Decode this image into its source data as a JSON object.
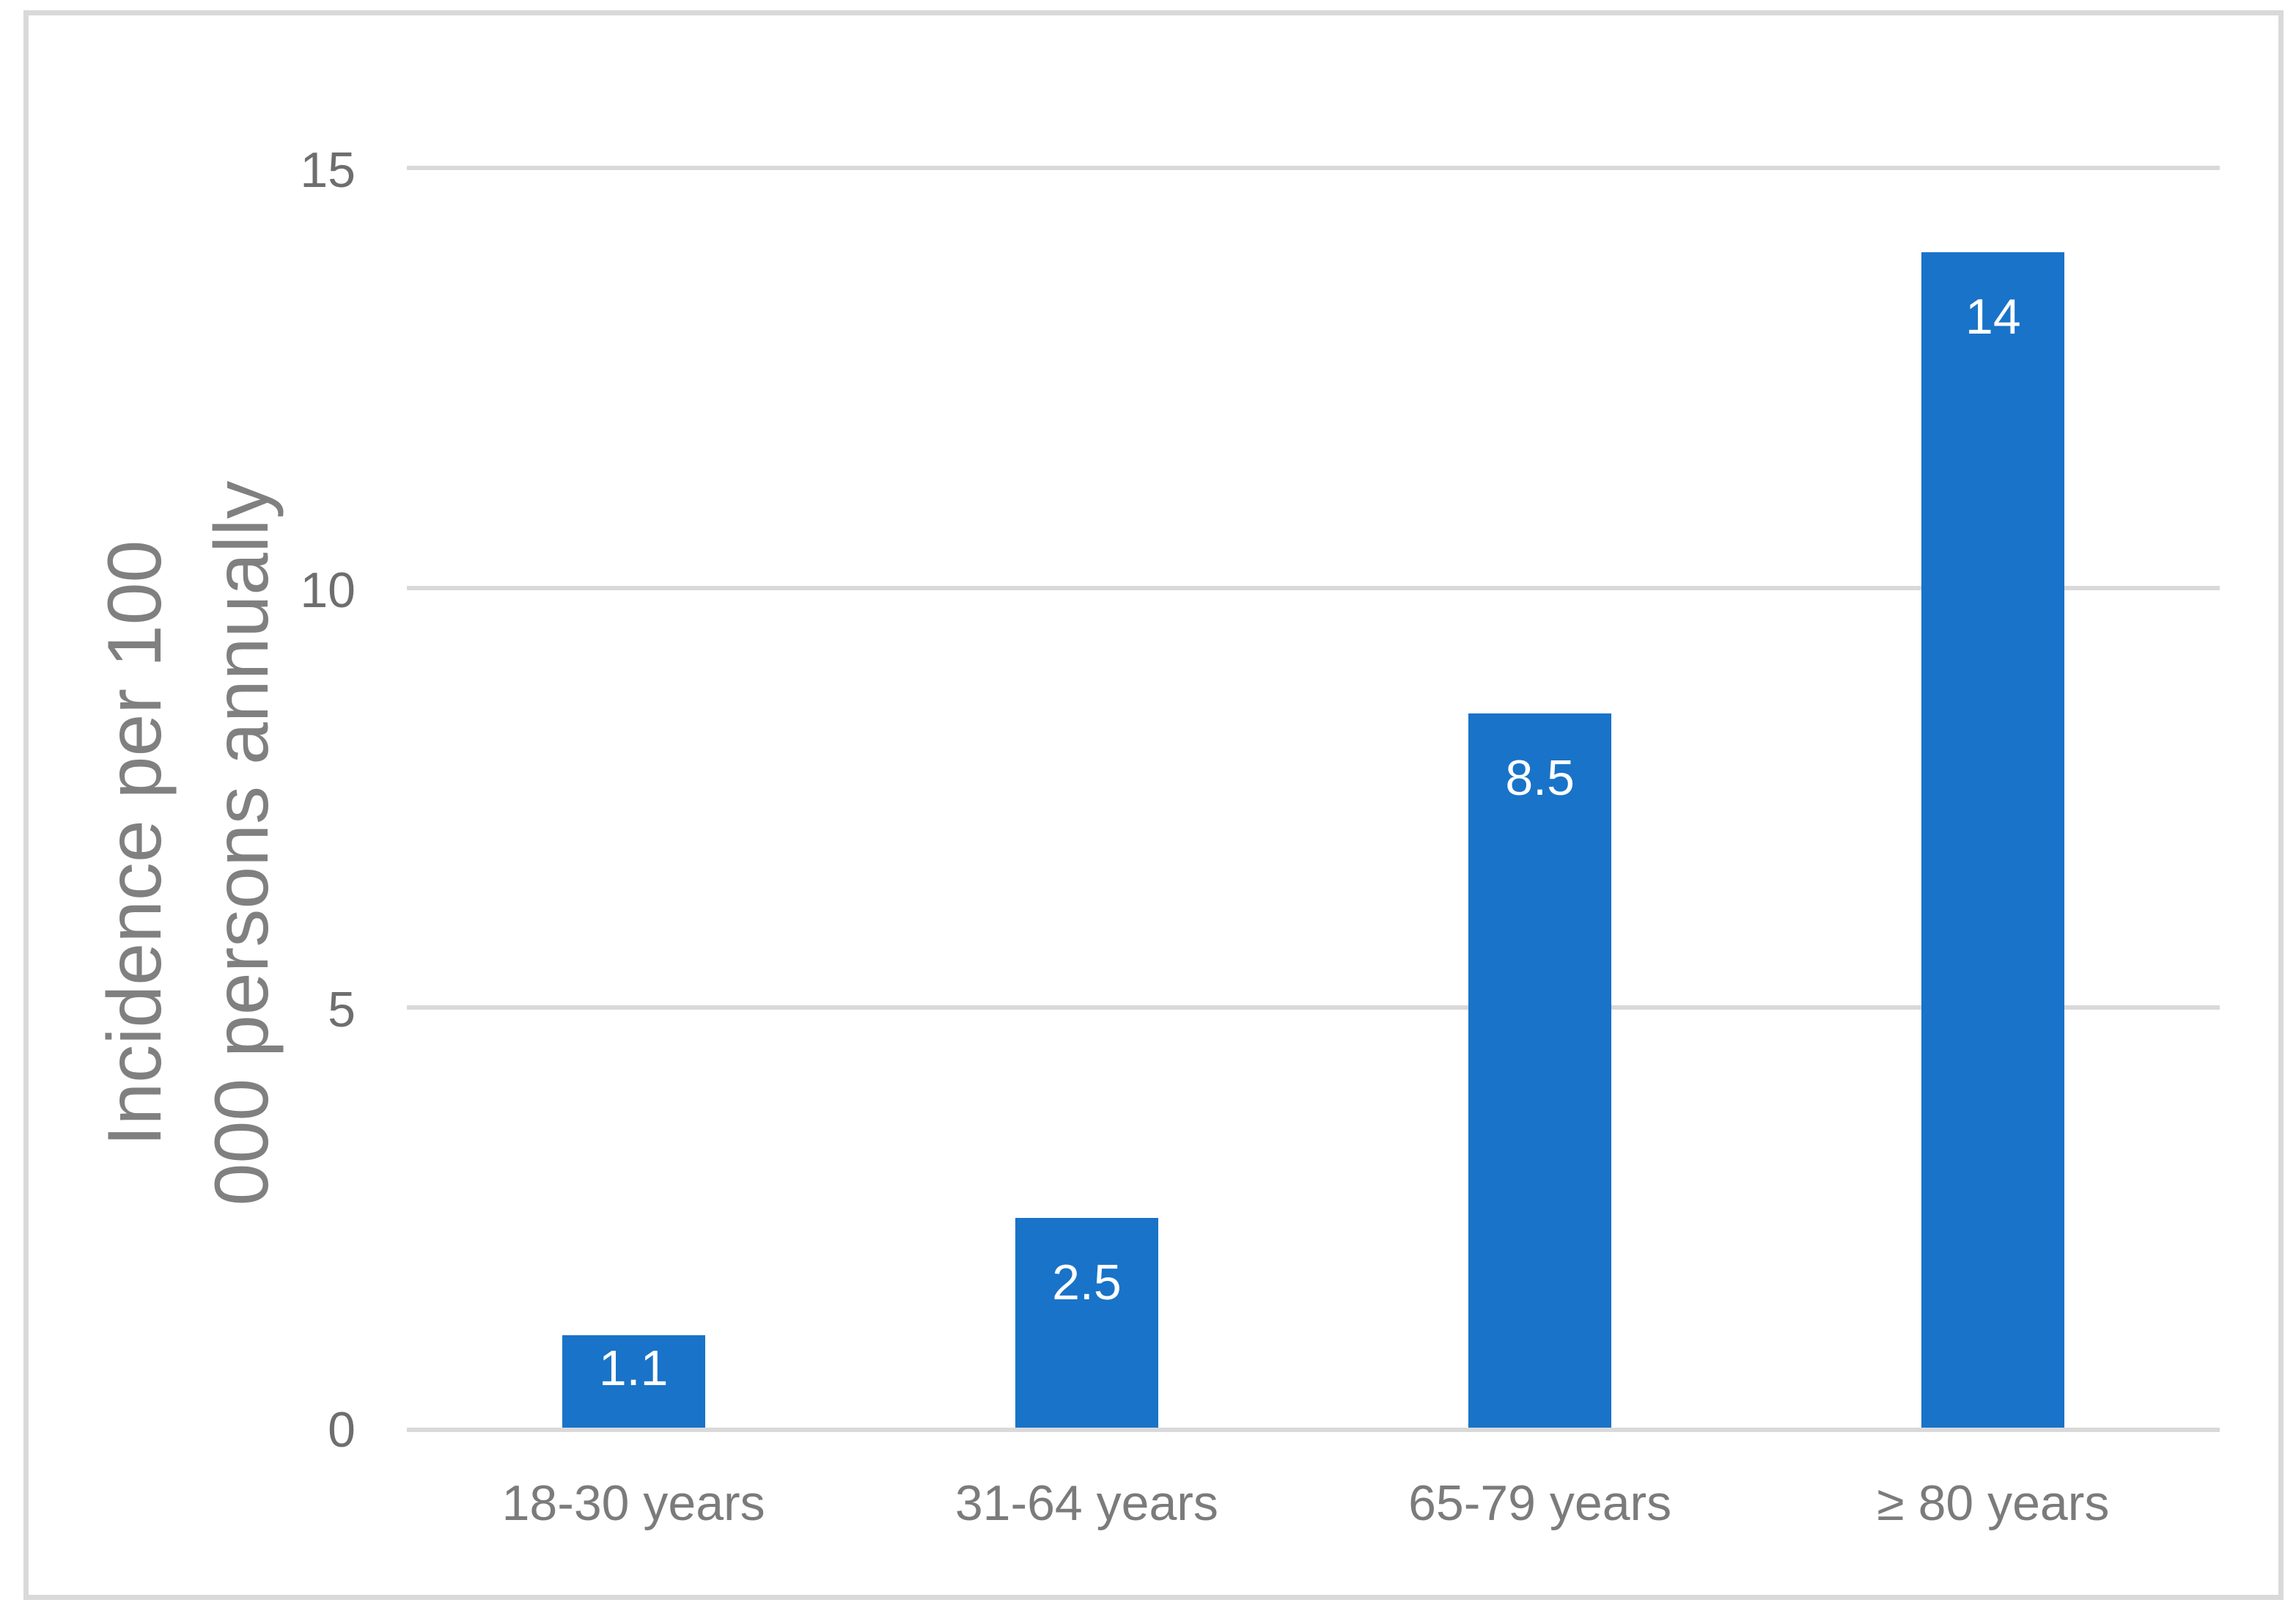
{
  "chart_data": {
    "type": "bar",
    "title": "",
    "categories": [
      "18-30 years",
      "31-64 years",
      "65-79 years",
      "≥ 80 years"
    ],
    "values": [
      1.1,
      2.5,
      8.5,
      14
    ],
    "data_labels": [
      "1.1",
      "2.5",
      "8.5",
      "14"
    ],
    "ylabel": "Incidence per 100 000 persons annually",
    "ylabel_lines": [
      "Incidence per 100",
      "000 persons annually"
    ],
    "xlabel": "",
    "yticks": [
      0,
      5,
      10,
      15
    ],
    "ylim": [
      0,
      15
    ],
    "grid": true,
    "legend": "none",
    "colors": {
      "bar": "#1973c8",
      "data_label_text": "#ffffff",
      "tick_text": "#6e6e6e",
      "category_text": "#7b7b7b",
      "axis_title_text": "#808080",
      "gridline": "#d9d9d9",
      "axis_line": "#d9d9d9",
      "border": "#d9d9d9",
      "background": "#ffffff"
    }
  }
}
